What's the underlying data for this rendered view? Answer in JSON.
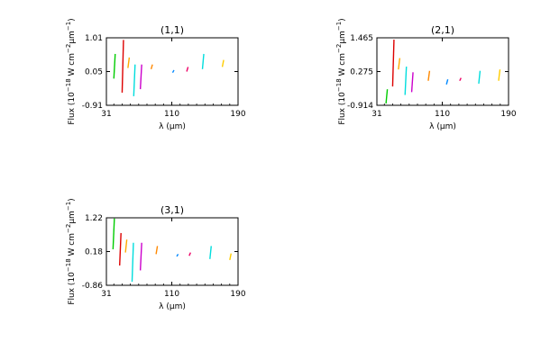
{
  "chart_data": [
    {
      "type": "scatter",
      "title": "(1,1)",
      "xlabel": "λ (μm)",
      "ylabel_prefix": "Flux (10",
      "ylabel_exp1": "−18",
      "ylabel_mid": " W cm",
      "ylabel_exp2": "−2",
      "ylabel_unit": "μm",
      "ylabel_exp3": "−1",
      "ylabel_suffix": ")",
      "xlim": [
        31,
        190
      ],
      "ylim": [
        -0.91,
        1.01
      ],
      "xticks": [
        "31",
        "110",
        "190"
      ],
      "yticks": [
        "1.01",
        "0.05",
        "-0.91"
      ],
      "segments": [
        {
          "x": 40,
          "y": [
            -0.15,
            0.55
          ],
          "color": "#00cc00"
        },
        {
          "x": 50,
          "y": [
            -0.55,
            0.95
          ],
          "color": "#dd0000"
        },
        {
          "x": 57,
          "y": [
            0.15,
            0.45
          ],
          "color": "#ffaa00"
        },
        {
          "x": 64,
          "y": [
            -0.65,
            0.25
          ],
          "color": "#00dddd"
        },
        {
          "x": 72,
          "y": [
            -0.45,
            0.25
          ],
          "color": "#cc00cc"
        },
        {
          "x": 85,
          "y": [
            0.12,
            0.25
          ],
          "color": "#ff8800"
        },
        {
          "x": 111,
          "y": [
            0.02,
            0.09
          ],
          "color": "#0088ff"
        },
        {
          "x": 128,
          "y": [
            0.05,
            0.18
          ],
          "color": "#ee0066"
        },
        {
          "x": 147,
          "y": [
            0.12,
            0.55
          ],
          "color": "#00dddd"
        },
        {
          "x": 171,
          "y": [
            0.18,
            0.38
          ],
          "color": "#ffcc00"
        }
      ]
    },
    {
      "type": "scatter",
      "title": "(2,1)",
      "xlabel": "λ (μm)",
      "ylabel_prefix": "Flux (10",
      "ylabel_exp1": "−18",
      "ylabel_mid": " W cm",
      "ylabel_exp2": "−2",
      "ylabel_unit": "μm",
      "ylabel_exp3": "−1",
      "ylabel_suffix": ")",
      "xlim": [
        31,
        190
      ],
      "ylim": [
        -0.914,
        1.465
      ],
      "xticks": [
        "31",
        "110",
        "190"
      ],
      "yticks": [
        "1.465",
        "0.275",
        "-0.914"
      ],
      "segments": [
        {
          "x": 42,
          "y": [
            -0.85,
            -0.35
          ],
          "color": "#00cc00"
        },
        {
          "x": 50,
          "y": [
            -0.25,
            1.4
          ],
          "color": "#dd0000"
        },
        {
          "x": 57,
          "y": [
            0.35,
            0.75
          ],
          "color": "#ffaa00"
        },
        {
          "x": 65,
          "y": [
            -0.55,
            0.45
          ],
          "color": "#00dddd"
        },
        {
          "x": 73,
          "y": [
            -0.45,
            0.25
          ],
          "color": "#cc00cc"
        },
        {
          "x": 93,
          "y": [
            -0.05,
            0.3
          ],
          "color": "#ff8800"
        },
        {
          "x": 115,
          "y": [
            -0.18,
            0.0
          ],
          "color": "#0088ff"
        },
        {
          "x": 131,
          "y": [
            -0.05,
            0.05
          ],
          "color": "#ee0066"
        },
        {
          "x": 154,
          "y": [
            -0.15,
            0.3
          ],
          "color": "#00dddd"
        },
        {
          "x": 178,
          "y": [
            -0.05,
            0.35
          ],
          "color": "#ffcc00"
        }
      ]
    },
    {
      "type": "scatter",
      "title": "(3,1)",
      "xlabel": "λ (μm)",
      "ylabel_prefix": "Flux (10",
      "ylabel_exp1": "−18",
      "ylabel_mid": " W cm",
      "ylabel_exp2": "−2",
      "ylabel_unit": "μm",
      "ylabel_exp3": "−1",
      "ylabel_suffix": ")",
      "xlim": [
        31,
        190
      ],
      "ylim": [
        -0.86,
        1.22
      ],
      "xticks": [
        "31",
        "110",
        "190"
      ],
      "yticks": [
        "1.22",
        "0.18",
        "-0.86"
      ],
      "segments": [
        {
          "x": 39,
          "y": [
            0.25,
            1.2
          ],
          "color": "#00cc00"
        },
        {
          "x": 47,
          "y": [
            -0.25,
            0.75
          ],
          "color": "#dd0000"
        },
        {
          "x": 54,
          "y": [
            0.15,
            0.55
          ],
          "color": "#ffaa00"
        },
        {
          "x": 62,
          "y": [
            -0.75,
            0.45
          ],
          "color": "#00dddd"
        },
        {
          "x": 72,
          "y": [
            -0.4,
            0.45
          ],
          "color": "#cc00cc"
        },
        {
          "x": 91,
          "y": [
            0.1,
            0.35
          ],
          "color": "#ff8800"
        },
        {
          "x": 116,
          "y": [
            0.03,
            0.1
          ],
          "color": "#0088ff"
        },
        {
          "x": 131,
          "y": [
            0.05,
            0.15
          ],
          "color": "#ee0066"
        },
        {
          "x": 156,
          "y": [
            -0.05,
            0.35
          ],
          "color": "#00dddd"
        },
        {
          "x": 180,
          "y": [
            -0.08,
            0.12
          ],
          "color": "#ffcc00"
        }
      ]
    }
  ]
}
